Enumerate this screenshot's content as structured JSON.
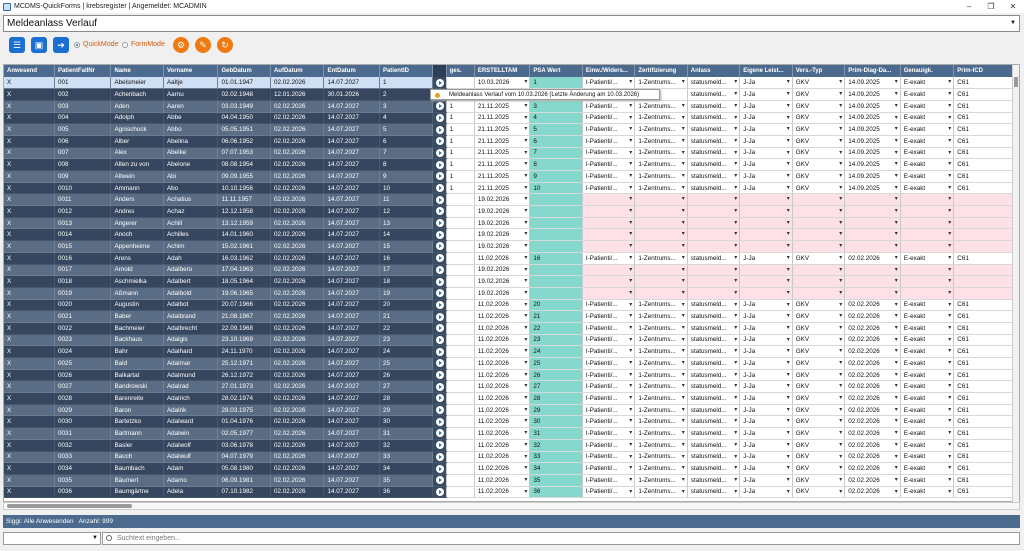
{
  "window": {
    "title": "MCDMS-QuickForms | krebsregister | Angemeldet: MCADMIN"
  },
  "top_dropdown": {
    "value": "Meldeanlass Verlauf"
  },
  "toolbar": {
    "quick_mode": "QuickMode",
    "form_mode": "FormMode",
    "icons": [
      "list-icon",
      "save-icon",
      "export-icon",
      "search-settings-icon",
      "edit-icon",
      "refresh-icon"
    ]
  },
  "colors": {
    "header": "#4c6a8e",
    "accent_orange": "#f07a12",
    "psa_cell": "#86d8cc",
    "pink_row": "#fde1e6"
  },
  "tooltip": {
    "text": "Meldeanlass Verlauf vom 10.03.2026 (Letzte Änderung am 10.03.2026)"
  },
  "columns": [
    "Anwesend",
    "PatientFallNr",
    "Name",
    "Vorname",
    "GebDatum",
    "AufDatum",
    "EntDatum",
    "PatientID",
    "",
    "ges.",
    "ERSTELLTAM",
    "PSA Wert",
    "Einw./Widers...",
    "Zertifizierung",
    "Anlass",
    "Eigene Leist...",
    "Vers.-Typ",
    "Prim-Diag-Da...",
    "Genauigk.",
    "Prim-ICD"
  ],
  "rows": [
    {
      "a": "X",
      "fall": "001",
      "name": "Abelsmeier",
      "vorname": "Aaltje",
      "geb": "01.01.1947",
      "auf": "02.02.2026",
      "ent": "14.07.2027",
      "pid": "1",
      "ges": "",
      "erst": "10.03.2026",
      "psa": "1",
      "einw": "I-Patienti/...",
      "zert": "1-Zentrums...",
      "anlass": "statusmeld...",
      "eig": "J-Ja",
      "vers": "GKV",
      "prim": "14.09.2025",
      "gen": "E-exakt",
      "icd": "C61"
    },
    {
      "a": "X",
      "fall": "002",
      "name": "Achenbach",
      "vorname": "Aarnu",
      "geb": "02.02.1948",
      "auf": "12.01.2026",
      "ent": "30.01.2026",
      "pid": "2",
      "ges": "",
      "erst": "",
      "psa": "",
      "einw": "",
      "zert": "",
      "anlass": "statusmeld...",
      "eig": "J-Ja",
      "vers": "GKV",
      "prim": "14.09.2025",
      "gen": "E-exakt",
      "icd": "C61"
    },
    {
      "a": "X",
      "fall": "003",
      "name": "Aden",
      "vorname": "Aaren",
      "geb": "03.03.1949",
      "auf": "02.02.2026",
      "ent": "14.07.2027",
      "pid": "3",
      "ges": "1",
      "erst": "21.11.2025",
      "psa": "3",
      "einw": "I-Patienti/...",
      "zert": "1-Zentrums...",
      "anlass": "statusmeld...",
      "eig": "J-Ja",
      "vers": "GKV",
      "prim": "14.09.2025",
      "gen": "E-exakt",
      "icd": "C61"
    },
    {
      "a": "X",
      "fall": "004",
      "name": "Adolph",
      "vorname": "Abbe",
      "geb": "04.04.1950",
      "auf": "02.02.2026",
      "ent": "14.07.2027",
      "pid": "4",
      "ges": "1",
      "erst": "21.11.2025",
      "psa": "4",
      "einw": "I-Patienti/...",
      "zert": "1-Zentrums...",
      "anlass": "statusmeld...",
      "eig": "J-Ja",
      "vers": "GKV",
      "prim": "14.09.2025",
      "gen": "E-exakt",
      "icd": "C61"
    },
    {
      "a": "X",
      "fall": "005",
      "name": "Agnischock",
      "vorname": "Abbo",
      "geb": "05.05.1951",
      "auf": "02.02.2026",
      "ent": "14.07.2027",
      "pid": "5",
      "ges": "1",
      "erst": "21.11.2025",
      "psa": "5",
      "einw": "I-Patienti/...",
      "zert": "1-Zentrums...",
      "anlass": "statusmeld...",
      "eig": "J-Ja",
      "vers": "GKV",
      "prim": "14.09.2025",
      "gen": "E-exakt",
      "icd": "C61"
    },
    {
      "a": "X",
      "fall": "006",
      "name": "Alber",
      "vorname": "Abelina",
      "geb": "06.06.1952",
      "auf": "02.02.2026",
      "ent": "14.07.2027",
      "pid": "6",
      "ges": "1",
      "erst": "21.11.2025",
      "psa": "6",
      "einw": "I-Patienti/...",
      "zert": "1-Zentrums...",
      "anlass": "statusmeld...",
      "eig": "J-Ja",
      "vers": "GKV",
      "prim": "14.09.2025",
      "gen": "E-exakt",
      "icd": "C61"
    },
    {
      "a": "X",
      "fall": "007",
      "name": "Alex",
      "vorname": "Abelke",
      "geb": "07.07.1953",
      "auf": "02.02.2026",
      "ent": "14.07.2027",
      "pid": "7",
      "ges": "1",
      "erst": "21.11.2025",
      "psa": "7",
      "einw": "I-Patienti/...",
      "zert": "1-Zentrums...",
      "anlass": "statusmeld...",
      "eig": "J-Ja",
      "vers": "GKV",
      "prim": "14.09.2025",
      "gen": "E-exakt",
      "icd": "C61"
    },
    {
      "a": "X",
      "fall": "008",
      "name": "Alten zu von",
      "vorname": "Abelone",
      "geb": "08.08.1954",
      "auf": "02.02.2026",
      "ent": "14.07.2027",
      "pid": "8",
      "ges": "1",
      "erst": "21.11.2025",
      "psa": "8",
      "einw": "I-Patienti/...",
      "zert": "1-Zentrums...",
      "anlass": "statusmeld...",
      "eig": "J-Ja",
      "vers": "GKV",
      "prim": "14.09.2025",
      "gen": "E-exakt",
      "icd": "C61"
    },
    {
      "a": "X",
      "fall": "009",
      "name": "Altwein",
      "vorname": "Abi",
      "geb": "09.09.1955",
      "auf": "02.02.2026",
      "ent": "14.07.2027",
      "pid": "9",
      "ges": "1",
      "erst": "21.11.2025",
      "psa": "9",
      "einw": "I-Patienti/...",
      "zert": "1-Zentrums...",
      "anlass": "statusmeld...",
      "eig": "J-Ja",
      "vers": "GKV",
      "prim": "14.09.2025",
      "gen": "E-exakt",
      "icd": "C61"
    },
    {
      "a": "X",
      "fall": "0010",
      "name": "Ammann",
      "vorname": "Abo",
      "geb": "10.10.1956",
      "auf": "02.02.2026",
      "ent": "14.07.2027",
      "pid": "10",
      "ges": "1",
      "erst": "21.11.2025",
      "psa": "10",
      "einw": "I-Patienti/...",
      "zert": "1-Zentrums...",
      "anlass": "statusmeld...",
      "eig": "J-Ja",
      "vers": "GKV",
      "prim": "14.09.2025",
      "gen": "E-exakt",
      "icd": "C61"
    },
    {
      "a": "X",
      "fall": "0011",
      "name": "Anders",
      "vorname": "Achatius",
      "geb": "11.11.1957",
      "auf": "02.02.2026",
      "ent": "14.07.2027",
      "pid": "11",
      "ges": "",
      "erst": "19.02.2026",
      "psa": "",
      "pink": true
    },
    {
      "a": "X",
      "fall": "0012",
      "name": "Andres",
      "vorname": "Achaz",
      "geb": "12.12.1958",
      "auf": "02.02.2026",
      "ent": "14.07.2027",
      "pid": "12",
      "ges": "",
      "erst": "19.02.2026",
      "psa": "",
      "pink": true
    },
    {
      "a": "X",
      "fall": "0013",
      "name": "Angerer",
      "vorname": "Achill",
      "geb": "13.12.1959",
      "auf": "02.02.2026",
      "ent": "14.07.2027",
      "pid": "13",
      "ges": "",
      "erst": "19.02.2026",
      "psa": "",
      "pink": true
    },
    {
      "a": "X",
      "fall": "0014",
      "name": "Anoch",
      "vorname": "Achilles",
      "geb": "14.01.1960",
      "auf": "02.02.2026",
      "ent": "14.07.2027",
      "pid": "14",
      "ges": "",
      "erst": "19.02.2026",
      "psa": "",
      "pink": true
    },
    {
      "a": "X",
      "fall": "0015",
      "name": "Appenheime",
      "vorname": "Achim",
      "geb": "15.02.1961",
      "auf": "02.02.2026",
      "ent": "14.07.2027",
      "pid": "15",
      "ges": "",
      "erst": "19.02.2026",
      "psa": "",
      "pink": true
    },
    {
      "a": "X",
      "fall": "0016",
      "name": "Arens",
      "vorname": "Adah",
      "geb": "16.03.1962",
      "auf": "02.02.2026",
      "ent": "14.07.2027",
      "pid": "16",
      "ges": "",
      "erst": "11.02.2026",
      "psa": "16",
      "einw": "I-Patienti/...",
      "zert": "1-Zentrums...",
      "anlass": "statusmeld...",
      "eig": "J-Ja",
      "vers": "GKV",
      "prim": "02.02.2026",
      "gen": "E-exakt",
      "icd": "C61"
    },
    {
      "a": "X",
      "fall": "0017",
      "name": "Arnold",
      "vorname": "Adalbero",
      "geb": "17.04.1963",
      "auf": "02.02.2026",
      "ent": "14.07.2027",
      "pid": "17",
      "ges": "",
      "erst": "19.02.2026",
      "psa": "",
      "pink": true
    },
    {
      "a": "X",
      "fall": "0018",
      "name": "Aschmielka",
      "vorname": "Adalbert",
      "geb": "18.05.1964",
      "auf": "02.02.2026",
      "ent": "14.07.2027",
      "pid": "18",
      "ges": "",
      "erst": "19.02.2026",
      "psa": "",
      "pink": true
    },
    {
      "a": "X",
      "fall": "0019",
      "name": "Aßmann",
      "vorname": "Adalbold",
      "geb": "19.06.1965",
      "auf": "02.02.2026",
      "ent": "14.07.2027",
      "pid": "19",
      "ges": "",
      "erst": "19.02.2026",
      "psa": "",
      "pink": true
    },
    {
      "a": "X",
      "fall": "0020",
      "name": "Augustin",
      "vorname": "Adalbot",
      "geb": "20.07.1966",
      "auf": "02.02.2026",
      "ent": "14.07.2027",
      "pid": "20",
      "ges": "",
      "erst": "11.02.2026",
      "psa": "20",
      "einw": "I-Patienti/...",
      "zert": "1-Zentrums...",
      "anlass": "statusmeld...",
      "eig": "J-Ja",
      "vers": "GKV",
      "prim": "02.02.2026",
      "gen": "E-exakt",
      "icd": "C61"
    },
    {
      "a": "X",
      "fall": "0021",
      "name": "Baber",
      "vorname": "Adalbrand",
      "geb": "21.08.1967",
      "auf": "02.02.2026",
      "ent": "14.07.2027",
      "pid": "21",
      "ges": "",
      "erst": "11.02.2026",
      "psa": "21",
      "einw": "I-Patienti/...",
      "zert": "1-Zentrums...",
      "anlass": "statusmeld...",
      "eig": "J-Ja",
      "vers": "GKV",
      "prim": "02.02.2026",
      "gen": "E-exakt",
      "icd": "C61"
    },
    {
      "a": "X",
      "fall": "0022",
      "name": "Bachmeier",
      "vorname": "Adalbrecht",
      "geb": "22.09.1968",
      "auf": "02.02.2026",
      "ent": "14.07.2027",
      "pid": "22",
      "ges": "",
      "erst": "11.02.2026",
      "psa": "22",
      "einw": "I-Patienti/...",
      "zert": "1-Zentrums...",
      "anlass": "statusmeld...",
      "eig": "J-Ja",
      "vers": "GKV",
      "prim": "02.02.2026",
      "gen": "E-exakt",
      "icd": "C61"
    },
    {
      "a": "X",
      "fall": "0023",
      "name": "Backhaus",
      "vorname": "Adalgis",
      "geb": "23.10.1969",
      "auf": "02.02.2026",
      "ent": "14.07.2027",
      "pid": "23",
      "ges": "",
      "erst": "11.02.2026",
      "psa": "23",
      "einw": "I-Patienti/...",
      "zert": "1-Zentrums...",
      "anlass": "statusmeld...",
      "eig": "J-Ja",
      "vers": "GKV",
      "prim": "02.02.2026",
      "gen": "E-exakt",
      "icd": "C61"
    },
    {
      "a": "X",
      "fall": "0024",
      "name": "Bahr",
      "vorname": "Adalhard",
      "geb": "24.11.1970",
      "auf": "02.02.2026",
      "ent": "14.07.2027",
      "pid": "24",
      "ges": "",
      "erst": "11.02.2026",
      "psa": "24",
      "einw": "I-Patienti/...",
      "zert": "1-Zentrums...",
      "anlass": "statusmeld...",
      "eig": "J-Ja",
      "vers": "GKV",
      "prim": "02.02.2026",
      "gen": "E-exakt",
      "icd": "C61"
    },
    {
      "a": "X",
      "fall": "0025",
      "name": "Bald",
      "vorname": "Adalmar",
      "geb": "25.12.1971",
      "auf": "02.02.2026",
      "ent": "14.07.2027",
      "pid": "25",
      "ges": "",
      "erst": "11.02.2026",
      "psa": "25",
      "einw": "I-Patienti/...",
      "zert": "1-Zentrums...",
      "anlass": "statusmeld...",
      "eig": "J-Ja",
      "vers": "GKV",
      "prim": "02.02.2026",
      "gen": "E-exakt",
      "icd": "C61"
    },
    {
      "a": "X",
      "fall": "0026",
      "name": "Balkartat",
      "vorname": "Adalmund",
      "geb": "26.12.1972",
      "auf": "02.02.2026",
      "ent": "14.07.2027",
      "pid": "26",
      "ges": "",
      "erst": "11.02.2026",
      "psa": "26",
      "einw": "I-Patienti/...",
      "zert": "1-Zentrums...",
      "anlass": "statusmeld...",
      "eig": "J-Ja",
      "vers": "GKV",
      "prim": "02.02.2026",
      "gen": "E-exakt",
      "icd": "C61"
    },
    {
      "a": "X",
      "fall": "0027",
      "name": "Bandrowski",
      "vorname": "Adalrad",
      "geb": "27.01.1973",
      "auf": "02.02.2026",
      "ent": "14.07.2027",
      "pid": "27",
      "ges": "",
      "erst": "11.02.2026",
      "psa": "27",
      "einw": "I-Patienti/...",
      "zert": "1-Zentrums...",
      "anlass": "statusmeld...",
      "eig": "J-Ja",
      "vers": "GKV",
      "prim": "02.02.2026",
      "gen": "E-exakt",
      "icd": "C61"
    },
    {
      "a": "X",
      "fall": "0028",
      "name": "Barenreite",
      "vorname": "Adalrich",
      "geb": "28.02.1974",
      "auf": "02.02.2026",
      "ent": "14.07.2027",
      "pid": "28",
      "ges": "",
      "erst": "11.02.2026",
      "psa": "28",
      "einw": "I-Patienti/...",
      "zert": "1-Zentrums...",
      "anlass": "statusmeld...",
      "eig": "J-Ja",
      "vers": "GKV",
      "prim": "02.02.2026",
      "gen": "E-exakt",
      "icd": "C61"
    },
    {
      "a": "X",
      "fall": "0029",
      "name": "Baron",
      "vorname": "Adalrik",
      "geb": "28.03.1975",
      "auf": "02.02.2026",
      "ent": "14.07.2027",
      "pid": "29",
      "ges": "",
      "erst": "11.02.2026",
      "psa": "29",
      "einw": "I-Patienti/...",
      "zert": "1-Zentrums...",
      "anlass": "statusmeld...",
      "eig": "J-Ja",
      "vers": "GKV",
      "prim": "02.02.2026",
      "gen": "E-exakt",
      "icd": "C61"
    },
    {
      "a": "X",
      "fall": "0030",
      "name": "Bartetzko",
      "vorname": "Adalward",
      "geb": "01.04.1976",
      "auf": "02.02.2026",
      "ent": "14.07.2027",
      "pid": "30",
      "ges": "",
      "erst": "11.02.2026",
      "psa": "30",
      "einw": "I-Patienti/...",
      "zert": "1-Zentrums...",
      "anlass": "statusmeld...",
      "eig": "J-Ja",
      "vers": "GKV",
      "prim": "02.02.2026",
      "gen": "E-exakt",
      "icd": "C61"
    },
    {
      "a": "X",
      "fall": "0031",
      "name": "Bartmann",
      "vorname": "Adalwin",
      "geb": "02.05.1977",
      "auf": "02.02.2026",
      "ent": "14.07.2027",
      "pid": "31",
      "ges": "",
      "erst": "11.02.2026",
      "psa": "31",
      "einw": "I-Patienti/...",
      "zert": "1-Zentrums...",
      "anlass": "statusmeld...",
      "eig": "J-Ja",
      "vers": "GKV",
      "prim": "02.02.2026",
      "gen": "E-exakt",
      "icd": "C61"
    },
    {
      "a": "X",
      "fall": "0032",
      "name": "Basler",
      "vorname": "Adalwolf",
      "geb": "03.06.1978",
      "auf": "02.02.2026",
      "ent": "14.07.2027",
      "pid": "32",
      "ges": "",
      "erst": "11.02.2026",
      "psa": "32",
      "einw": "I-Patienti/...",
      "zert": "1-Zentrums...",
      "anlass": "statusmeld...",
      "eig": "J-Ja",
      "vers": "GKV",
      "prim": "02.02.2026",
      "gen": "E-exakt",
      "icd": "C61"
    },
    {
      "a": "X",
      "fall": "0033",
      "name": "Bauch",
      "vorname": "Adalwulf",
      "geb": "04.07.1979",
      "auf": "02.02.2026",
      "ent": "14.07.2027",
      "pid": "33",
      "ges": "",
      "erst": "11.02.2026",
      "psa": "33",
      "einw": "I-Patienti/...",
      "zert": "1-Zentrums...",
      "anlass": "statusmeld...",
      "eig": "J-Ja",
      "vers": "GKV",
      "prim": "02.02.2026",
      "gen": "E-exakt",
      "icd": "C61"
    },
    {
      "a": "X",
      "fall": "0034",
      "name": "Baumbach",
      "vorname": "Adam",
      "geb": "05.08.1980",
      "auf": "02.02.2026",
      "ent": "14.07.2027",
      "pid": "34",
      "ges": "",
      "erst": "11.02.2026",
      "psa": "34",
      "einw": "I-Patienti/...",
      "zert": "1-Zentrums...",
      "anlass": "statusmeld...",
      "eig": "J-Ja",
      "vers": "GKV",
      "prim": "02.02.2026",
      "gen": "E-exakt",
      "icd": "C61"
    },
    {
      "a": "X",
      "fall": "0035",
      "name": "Bäumert",
      "vorname": "Adamo",
      "geb": "06.09.1981",
      "auf": "02.02.2026",
      "ent": "14.07.2027",
      "pid": "35",
      "ges": "",
      "erst": "11.02.2026",
      "psa": "35",
      "einw": "I-Patienti/...",
      "zert": "1-Zentrums...",
      "anlass": "statusmeld...",
      "eig": "J-Ja",
      "vers": "GKV",
      "prim": "02.02.2026",
      "gen": "E-exakt",
      "icd": "C61"
    },
    {
      "a": "X",
      "fall": "0036",
      "name": "Baumgärtne",
      "vorname": "Adela",
      "geb": "07.10.1982",
      "auf": "02.02.2026",
      "ent": "14.07.2027",
      "pid": "36",
      "ges": "",
      "erst": "11.02.2026",
      "psa": "36",
      "einw": "I-Patienti/...",
      "zert": "1-Zentrums...",
      "anlass": "statusmeld...",
      "eig": "J-Ja",
      "vers": "GKV",
      "prim": "02.02.2026",
      "gen": "E-exakt",
      "icd": "C61"
    }
  ],
  "status": {
    "text": "Siggi: Alle Anwesenden   Anzahl: 999"
  },
  "footer": {
    "search_placeholder": "Suchtext eingeben..."
  }
}
